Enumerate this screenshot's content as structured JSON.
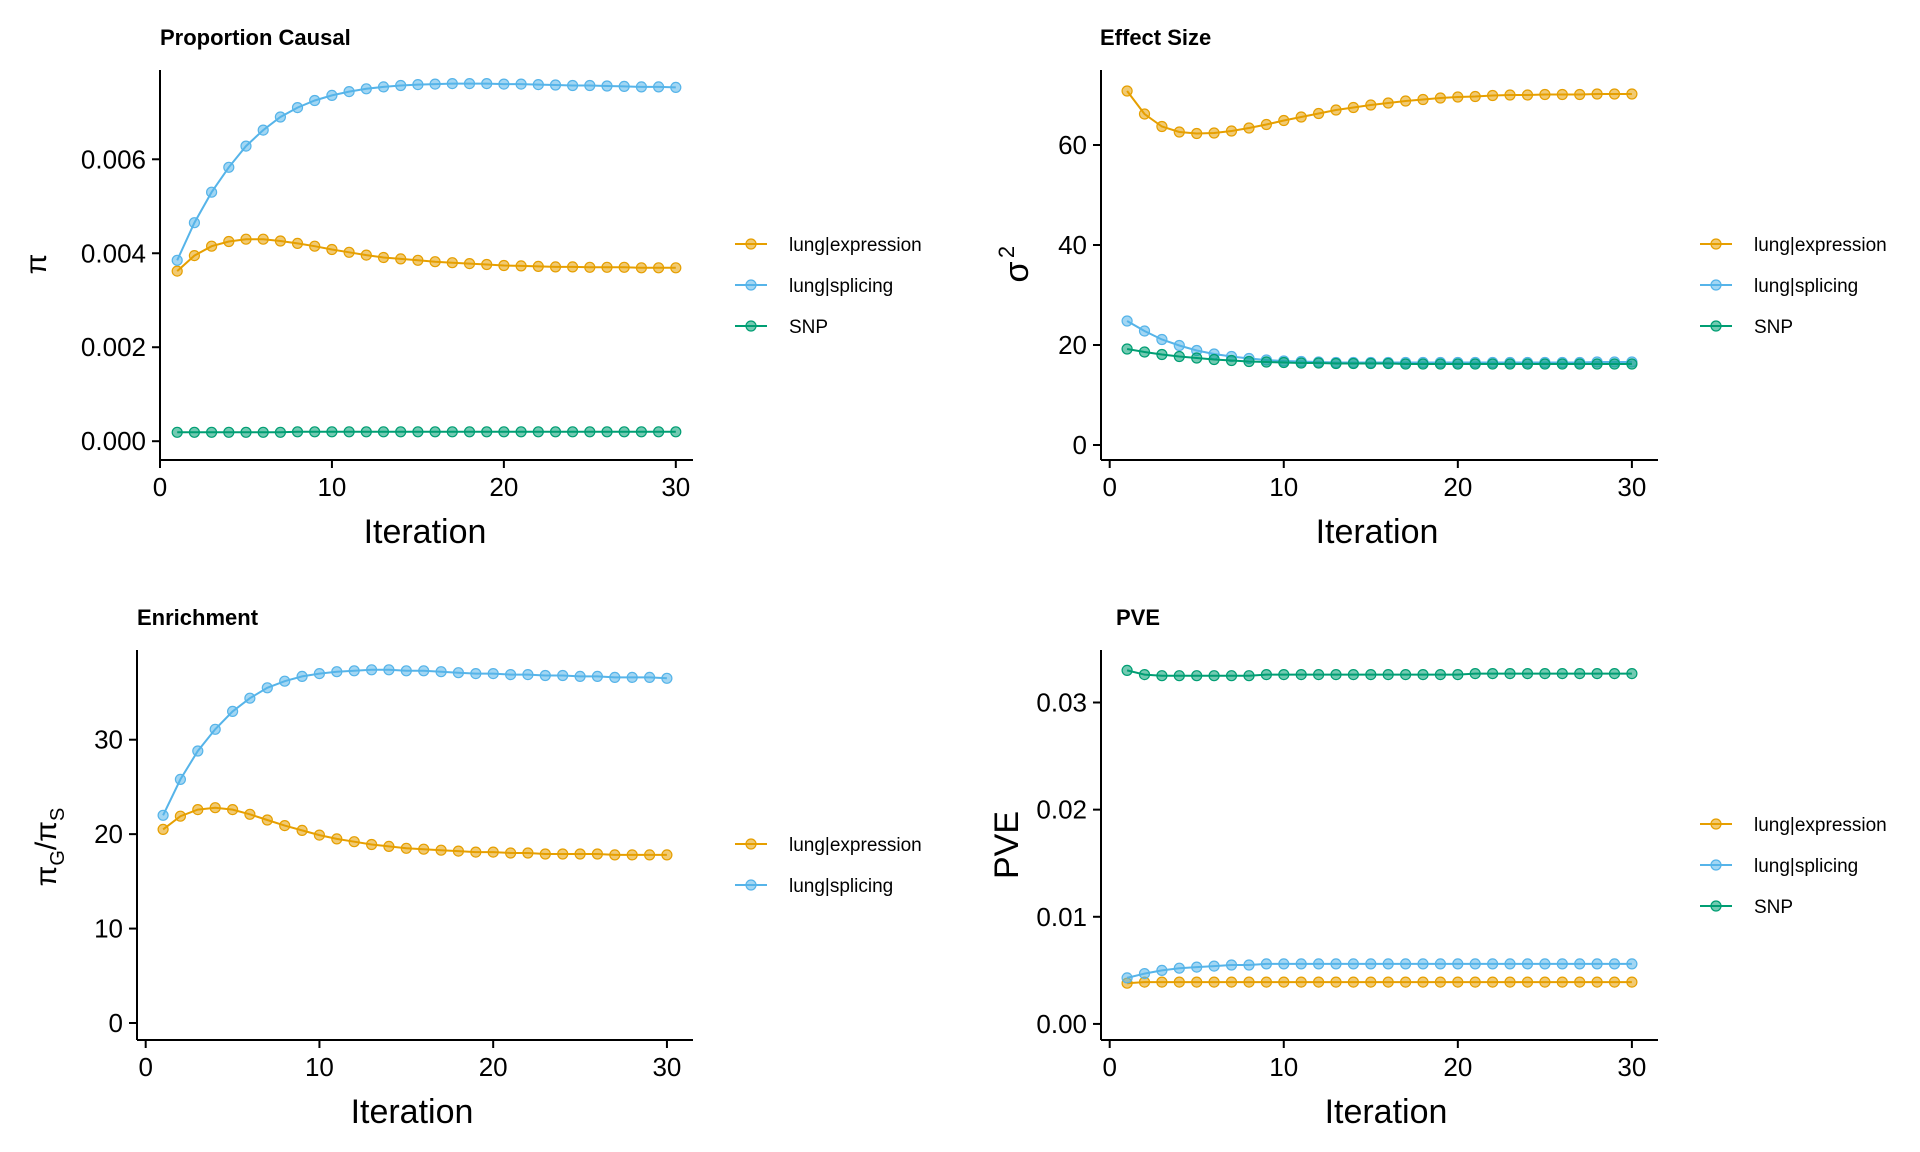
{
  "colors": {
    "lung|expression": "#E69F00",
    "lung|splicing": "#56B4E9",
    "SNP": "#009E73"
  },
  "chart_data": [
    {
      "id": "proportion-causal",
      "type": "line",
      "title": "Proportion Causal",
      "xlabel": "Iteration",
      "ylabel": "π",
      "xlim": [
        0,
        31
      ],
      "ylim": [
        -0.0004,
        0.0079
      ],
      "xticks": [
        0,
        10,
        20,
        30
      ],
      "xtick_labels": [
        "0",
        "10",
        "20",
        "30"
      ],
      "yticks": [
        0,
        0.002,
        0.004,
        0.006
      ],
      "ytick_labels": [
        "0.000",
        "0.002",
        "0.004",
        "0.006"
      ],
      "grid": false,
      "legend_position": "right",
      "x": [
        1,
        2,
        3,
        4,
        5,
        6,
        7,
        8,
        9,
        10,
        11,
        12,
        13,
        14,
        15,
        16,
        17,
        18,
        19,
        20,
        21,
        22,
        23,
        24,
        25,
        26,
        27,
        28,
        29,
        30
      ],
      "series": [
        {
          "name": "lung|expression",
          "values": [
            0.00362,
            0.00395,
            0.00415,
            0.00425,
            0.0043,
            0.0043,
            0.00426,
            0.00421,
            0.00415,
            0.00408,
            0.00402,
            0.00396,
            0.00391,
            0.00388,
            0.00385,
            0.00382,
            0.0038,
            0.00378,
            0.00376,
            0.00374,
            0.00373,
            0.00372,
            0.00371,
            0.00371,
            0.0037,
            0.0037,
            0.0037,
            0.00369,
            0.00369,
            0.00369
          ]
        },
        {
          "name": "lung|splicing",
          "values": [
            0.00385,
            0.00465,
            0.0053,
            0.00583,
            0.00628,
            0.00662,
            0.0069,
            0.0071,
            0.00725,
            0.00736,
            0.00744,
            0.0075,
            0.00754,
            0.00757,
            0.00759,
            0.0076,
            0.00761,
            0.00761,
            0.00761,
            0.0076,
            0.0076,
            0.00759,
            0.00758,
            0.00757,
            0.00757,
            0.00756,
            0.00755,
            0.00754,
            0.00754,
            0.00753
          ]
        },
        {
          "name": "SNP",
          "values": [
            0.00019,
            0.00019,
            0.00019,
            0.00019,
            0.00019,
            0.00019,
            0.00019,
            0.0002,
            0.0002,
            0.0002,
            0.0002,
            0.0002,
            0.0002,
            0.0002,
            0.0002,
            0.0002,
            0.0002,
            0.0002,
            0.0002,
            0.0002,
            0.0002,
            0.0002,
            0.0002,
            0.0002,
            0.0002,
            0.0002,
            0.0002,
            0.0002,
            0.0002,
            0.0002
          ]
        }
      ]
    },
    {
      "id": "effect-size",
      "type": "line",
      "title": "Effect Size",
      "xlabel": "Iteration",
      "ylabel": "σ²",
      "xlim": [
        -0.5,
        31.5
      ],
      "ylim": [
        -3,
        75
      ],
      "xticks": [
        0,
        10,
        20,
        30
      ],
      "xtick_labels": [
        "0",
        "10",
        "20",
        "30"
      ],
      "yticks": [
        0,
        20,
        40,
        60
      ],
      "ytick_labels": [
        "0",
        "20",
        "40",
        "60"
      ],
      "grid": false,
      "legend_position": "right",
      "x": [
        1,
        2,
        3,
        4,
        5,
        6,
        7,
        8,
        9,
        10,
        11,
        12,
        13,
        14,
        15,
        16,
        17,
        18,
        19,
        20,
        21,
        22,
        23,
        24,
        25,
        26,
        27,
        28,
        29,
        30
      ],
      "series": [
        {
          "name": "lung|expression",
          "values": [
            70.8,
            66.2,
            63.7,
            62.6,
            62.3,
            62.4,
            62.8,
            63.4,
            64.1,
            64.9,
            65.6,
            66.3,
            67.0,
            67.5,
            68.0,
            68.4,
            68.8,
            69.1,
            69.4,
            69.6,
            69.7,
            69.9,
            70.0,
            70.0,
            70.1,
            70.1,
            70.1,
            70.2,
            70.2,
            70.2
          ]
        },
        {
          "name": "lung|splicing",
          "values": [
            24.8,
            22.8,
            21.1,
            19.9,
            18.9,
            18.2,
            17.7,
            17.3,
            17.0,
            16.8,
            16.7,
            16.6,
            16.5,
            16.5,
            16.5,
            16.5,
            16.5,
            16.5,
            16.5,
            16.5,
            16.5,
            16.5,
            16.5,
            16.5,
            16.5,
            16.5,
            16.5,
            16.6,
            16.6,
            16.6
          ]
        },
        {
          "name": "SNP",
          "values": [
            19.2,
            18.6,
            18.1,
            17.7,
            17.4,
            17.1,
            16.9,
            16.7,
            16.6,
            16.5,
            16.4,
            16.4,
            16.3,
            16.3,
            16.3,
            16.3,
            16.2,
            16.2,
            16.2,
            16.2,
            16.2,
            16.2,
            16.2,
            16.2,
            16.2,
            16.2,
            16.2,
            16.2,
            16.2,
            16.2
          ]
        }
      ]
    },
    {
      "id": "enrichment",
      "type": "line",
      "title": "Enrichment",
      "xlabel": "Iteration",
      "ylabel": "πG/πS",
      "xlim": [
        -0.5,
        31.5
      ],
      "ylim": [
        -1.8,
        39.5
      ],
      "xticks": [
        0,
        10,
        20,
        30
      ],
      "xtick_labels": [
        "0",
        "10",
        "20",
        "30"
      ],
      "yticks": [
        0,
        10,
        20,
        30
      ],
      "ytick_labels": [
        "0",
        "10",
        "20",
        "30"
      ],
      "grid": false,
      "legend_position": "right",
      "x": [
        1,
        2,
        3,
        4,
        5,
        6,
        7,
        8,
        9,
        10,
        11,
        12,
        13,
        14,
        15,
        16,
        17,
        18,
        19,
        20,
        21,
        22,
        23,
        24,
        25,
        26,
        27,
        28,
        29,
        30
      ],
      "series": [
        {
          "name": "lung|expression",
          "values": [
            20.5,
            21.9,
            22.6,
            22.8,
            22.6,
            22.1,
            21.5,
            20.9,
            20.4,
            19.9,
            19.5,
            19.2,
            18.9,
            18.7,
            18.5,
            18.4,
            18.3,
            18.2,
            18.1,
            18.1,
            18.0,
            18.0,
            17.9,
            17.9,
            17.9,
            17.9,
            17.8,
            17.8,
            17.8,
            17.8
          ]
        },
        {
          "name": "lung|splicing",
          "values": [
            22.0,
            25.8,
            28.8,
            31.1,
            33.0,
            34.4,
            35.5,
            36.2,
            36.7,
            37.0,
            37.2,
            37.3,
            37.4,
            37.4,
            37.3,
            37.3,
            37.2,
            37.1,
            37.0,
            37.0,
            36.9,
            36.9,
            36.8,
            36.8,
            36.7,
            36.7,
            36.6,
            36.6,
            36.6,
            36.5
          ]
        }
      ]
    },
    {
      "id": "pve",
      "type": "line",
      "title": "PVE",
      "xlabel": "Iteration",
      "ylabel": "PVE",
      "xlim": [
        -0.5,
        31.5
      ],
      "ylim": [
        -0.0015,
        0.0349
      ],
      "xticks": [
        0,
        10,
        20,
        30
      ],
      "xtick_labels": [
        "0",
        "10",
        "20",
        "30"
      ],
      "yticks": [
        0,
        0.01,
        0.02,
        0.03
      ],
      "ytick_labels": [
        "0.00",
        "0.01",
        "0.02",
        "0.03"
      ],
      "grid": false,
      "legend_position": "right",
      "x": [
        1,
        2,
        3,
        4,
        5,
        6,
        7,
        8,
        9,
        10,
        11,
        12,
        13,
        14,
        15,
        16,
        17,
        18,
        19,
        20,
        21,
        22,
        23,
        24,
        25,
        26,
        27,
        28,
        29,
        30
      ],
      "series": [
        {
          "name": "lung|expression",
          "values": [
            0.0038,
            0.0039,
            0.0039,
            0.0039,
            0.0039,
            0.0039,
            0.0039,
            0.0039,
            0.0039,
            0.0039,
            0.0039,
            0.0039,
            0.0039,
            0.0039,
            0.0039,
            0.0039,
            0.0039,
            0.0039,
            0.0039,
            0.0039,
            0.0039,
            0.0039,
            0.0039,
            0.0039,
            0.0039,
            0.0039,
            0.0039,
            0.0039,
            0.0039,
            0.0039
          ]
        },
        {
          "name": "lung|splicing",
          "values": [
            0.0043,
            0.0047,
            0.005,
            0.0052,
            0.0053,
            0.0054,
            0.0055,
            0.0055,
            0.0056,
            0.0056,
            0.0056,
            0.0056,
            0.0056,
            0.0056,
            0.0056,
            0.0056,
            0.0056,
            0.0056,
            0.0056,
            0.0056,
            0.0056,
            0.0056,
            0.0056,
            0.0056,
            0.0056,
            0.0056,
            0.0056,
            0.0056,
            0.0056,
            0.0056
          ]
        },
        {
          "name": "SNP",
          "values": [
            0.033,
            0.0326,
            0.0325,
            0.0325,
            0.0325,
            0.0325,
            0.0325,
            0.0325,
            0.0326,
            0.0326,
            0.0326,
            0.0326,
            0.0326,
            0.0326,
            0.0326,
            0.0326,
            0.0326,
            0.0326,
            0.0326,
            0.0326,
            0.0327,
            0.0327,
            0.0327,
            0.0327,
            0.0327,
            0.0327,
            0.0327,
            0.0327,
            0.0327,
            0.0327
          ]
        }
      ]
    }
  ]
}
